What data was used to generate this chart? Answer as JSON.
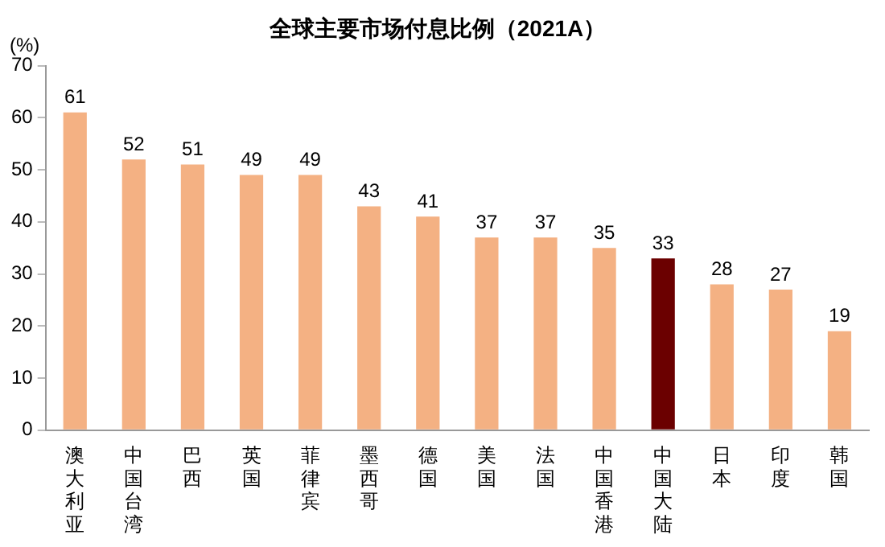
{
  "chart_data": {
    "type": "bar",
    "title": "全球主要市场付息比例（2021A）",
    "ylabel": "(%)",
    "categories": [
      "澳大利亚",
      "中国台湾",
      "巴西",
      "英国",
      "菲律宾",
      "墨西哥",
      "德国",
      "美国",
      "法国",
      "中国香港",
      "中国大陆",
      "日本",
      "印度",
      "韩国"
    ],
    "values": [
      61,
      52,
      51,
      49,
      49,
      43,
      41,
      37,
      37,
      35,
      33,
      28,
      27,
      19
    ],
    "colors": [
      "#f4b183",
      "#f4b183",
      "#f4b183",
      "#f4b183",
      "#f4b183",
      "#f4b183",
      "#f4b183",
      "#f4b183",
      "#f4b183",
      "#f4b183",
      "#6b0000",
      "#f4b183",
      "#f4b183",
      "#f4b183"
    ],
    "ylim": [
      0,
      70
    ],
    "yticks": [
      0,
      10,
      20,
      30,
      40,
      50,
      60,
      70
    ],
    "grid": false,
    "legend": false,
    "data_labels": true
  }
}
